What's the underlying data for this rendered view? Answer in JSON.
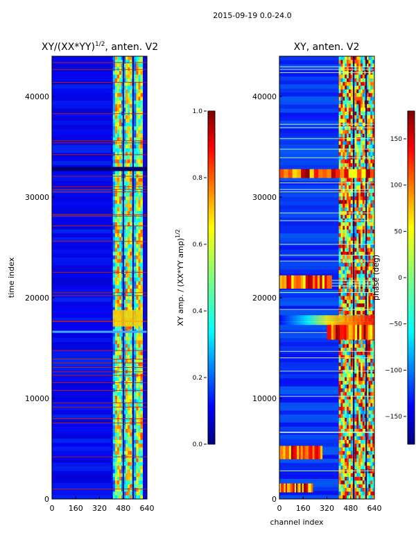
{
  "suptitle": "2015-09-19 0.0-24.0",
  "chart_data": [
    {
      "type": "heatmap",
      "title_main": "XY/(XX*YY)",
      "title_sup": "1/2",
      "title_rest": ", anten. V2",
      "xlabel": "",
      "ylabel": "time index",
      "xlim": [
        0,
        640
      ],
      "ylim": [
        0,
        44000
      ],
      "xticks": [
        0,
        160,
        320,
        480,
        640
      ],
      "yticks": [
        0,
        10000,
        20000,
        30000,
        40000
      ],
      "colorscale": "jet",
      "active_channel_range": [
        410,
        610
      ],
      "colorbar": {
        "label_main": "XY amp. / (XX*YY amp)",
        "label_sup": "1/2",
        "range": [
          0.0,
          1.0
        ],
        "ticks": [
          "0.0",
          "0.2",
          "0.4",
          "0.6",
          "0.8",
          "1.0"
        ]
      }
    },
    {
      "type": "heatmap",
      "title_main": "XY, anten. V2",
      "xlabel": "channel index",
      "ylabel": "",
      "xlim": [
        0,
        640
      ],
      "ylim": [
        0,
        44000
      ],
      "xticks": [
        0,
        160,
        320,
        480,
        640
      ],
      "yticks": [
        0,
        10000,
        20000,
        30000,
        40000
      ],
      "colorscale": "jet",
      "active_channel_range": [
        400,
        640
      ],
      "colorbar": {
        "label_main": "phase (deg)",
        "range": [
          -180,
          180
        ],
        "ticks": [
          "150",
          "100",
          "50",
          "0",
          "−50",
          "−100",
          "−150"
        ]
      }
    }
  ]
}
